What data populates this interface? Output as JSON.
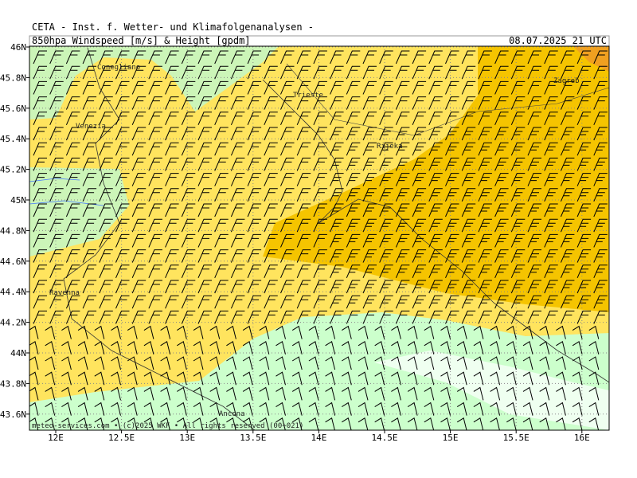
{
  "header": "CETA - Inst. f. Wetter- und Klimafolgenanalysen -",
  "title": "850hpa Windspeed [m/s] & Height [gpdm]",
  "date": "08.07.2025 21 UTC",
  "lat_labels": [
    "46N",
    "45.8N",
    "45.6N",
    "45.4N",
    "45.2N",
    "45N",
    "44.8N",
    "44.6N",
    "44.4N",
    "44.2N",
    "44N",
    "43.8N",
    "43.6N"
  ],
  "lon_labels": [
    "12E",
    "12.5E",
    "13E",
    "13.5E",
    "14E",
    "14.5E",
    "15E",
    "15.5E",
    "16E"
  ],
  "cities": [
    "Conegliano",
    "Venezia",
    "Trieste",
    "Rijeka",
    "Zagreb",
    "Ravenna",
    "Ancona"
  ],
  "credit": "meteo-services.com • (c)2025 WKF • All rights reserved (00+021)"
}
